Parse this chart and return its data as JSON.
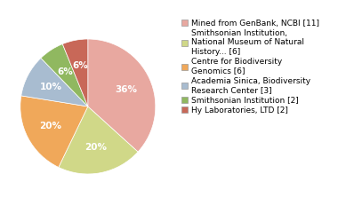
{
  "legend_labels": [
    "Mined from GenBank, NCBI [11]",
    "Smithsonian Institution,\nNational Museum of Natural\nHistory... [6]",
    "Centre for Biodiversity\nGenomics [6]",
    "Academia Sinica, Biodiversity\nResearch Center [3]",
    "Smithsonian Institution [2]",
    "Hy Laboratories, LTD [2]"
  ],
  "values": [
    36,
    20,
    20,
    10,
    6,
    6
  ],
  "colors": [
    "#e8a8a0",
    "#d0d888",
    "#f0a85a",
    "#a8bcd0",
    "#90b860",
    "#c86858"
  ],
  "pct_labels": [
    "36%",
    "20%",
    "20%",
    "10%",
    "6%",
    "6%"
  ],
  "startangle": 90,
  "counterclock": false,
  "background_color": "#ffffff",
  "pct_fontsize": 7.5,
  "legend_fontsize": 6.5
}
